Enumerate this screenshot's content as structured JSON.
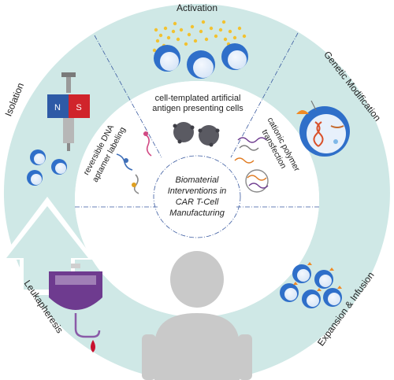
{
  "stages": {
    "activation": "Activation",
    "genetic_modification": "Genetic Modification",
    "expansion_infusion": "Expansion & Infusion",
    "leukapheresis": "Leukapheresis",
    "isolation": "Isolation"
  },
  "interventions": {
    "aapc_line1": "cell-templated artificial",
    "aapc_line2": "antigen presenting cells",
    "polymer_line1": "cationic polymer",
    "polymer_line2": "transfection",
    "aptamer_line1": "reversible DNA",
    "aptamer_line2": "aptamer labeling"
  },
  "center": {
    "line1": "Biomaterial",
    "line2": "Interventions in",
    "line3": "CAR T-Cell",
    "line4": "Manufacturing"
  },
  "magnet": {
    "north": "N",
    "south": "S"
  },
  "colors": {
    "ring": "#cfe8e6",
    "cell_blue": "#2f6fc9",
    "cell_light": "#e7f0fb",
    "bead_yellow": "#f2c230",
    "person": "#c9c9c9",
    "magnet_n": "#2e5aa6",
    "magnet_s": "#d0242b",
    "bag": "#6e3b8f",
    "blood": "#c8102e",
    "antibody": "#f08a24"
  }
}
